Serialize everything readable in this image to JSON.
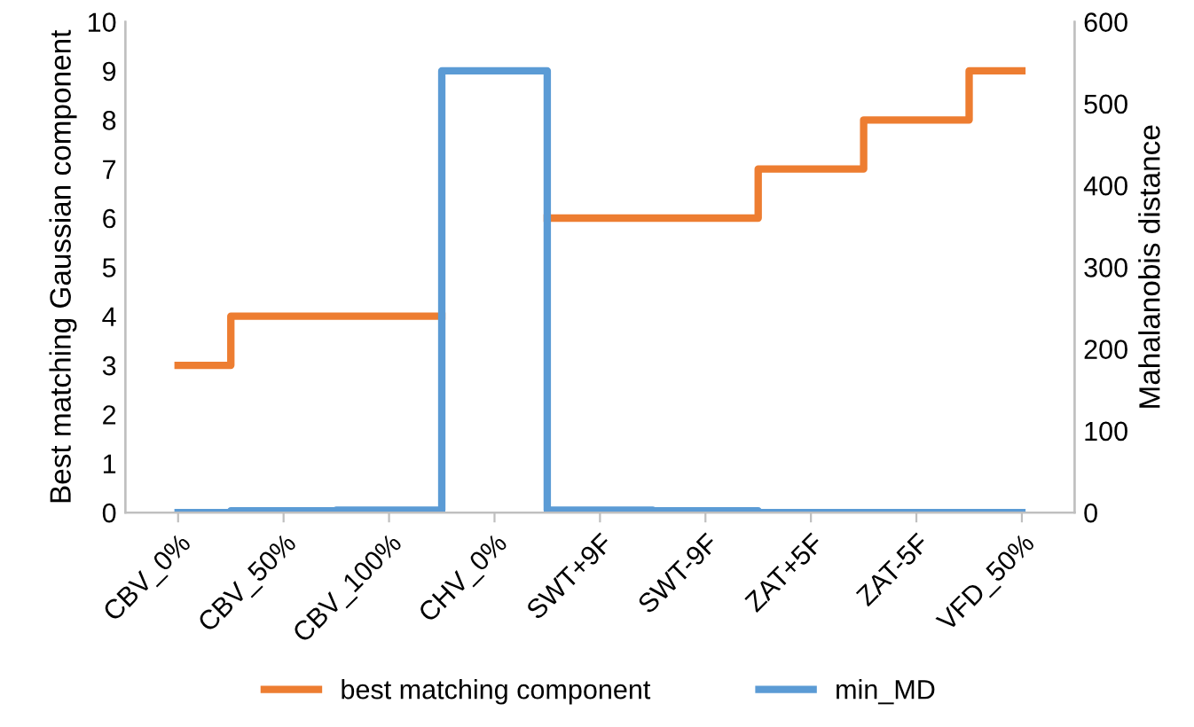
{
  "chart_data": {
    "type": "step",
    "ylabel": "Best matching Gaussian component",
    "y2label": "Mahalanobis distance",
    "categories": [
      "CBV_0%",
      "CBV_50%",
      "CBV_100%",
      "CHV_0%",
      "SWT+9F",
      "SWT-9F",
      "ZAT+5F",
      "ZAT-5F",
      "VFD_50%"
    ],
    "series": [
      {
        "name": "best matching component",
        "color": "#ed7d31",
        "values": [
          3,
          4,
          4,
          null,
          6,
          6,
          7,
          8,
          9
        ]
      },
      {
        "name": "min_MD",
        "color": "#5b9bd5",
        "axis": "y2",
        "values": [
          0,
          2,
          3,
          540,
          3,
          2,
          0,
          0,
          0
        ]
      }
    ],
    "ylim": [
      0,
      10
    ],
    "yticks": [
      0,
      1,
      2,
      3,
      4,
      5,
      6,
      7,
      8,
      9,
      10
    ],
    "y2lim": [
      0,
      600
    ],
    "y2ticks": [
      0,
      100,
      200,
      300,
      400,
      500,
      600
    ],
    "legend": "bottom",
    "grid": false
  }
}
